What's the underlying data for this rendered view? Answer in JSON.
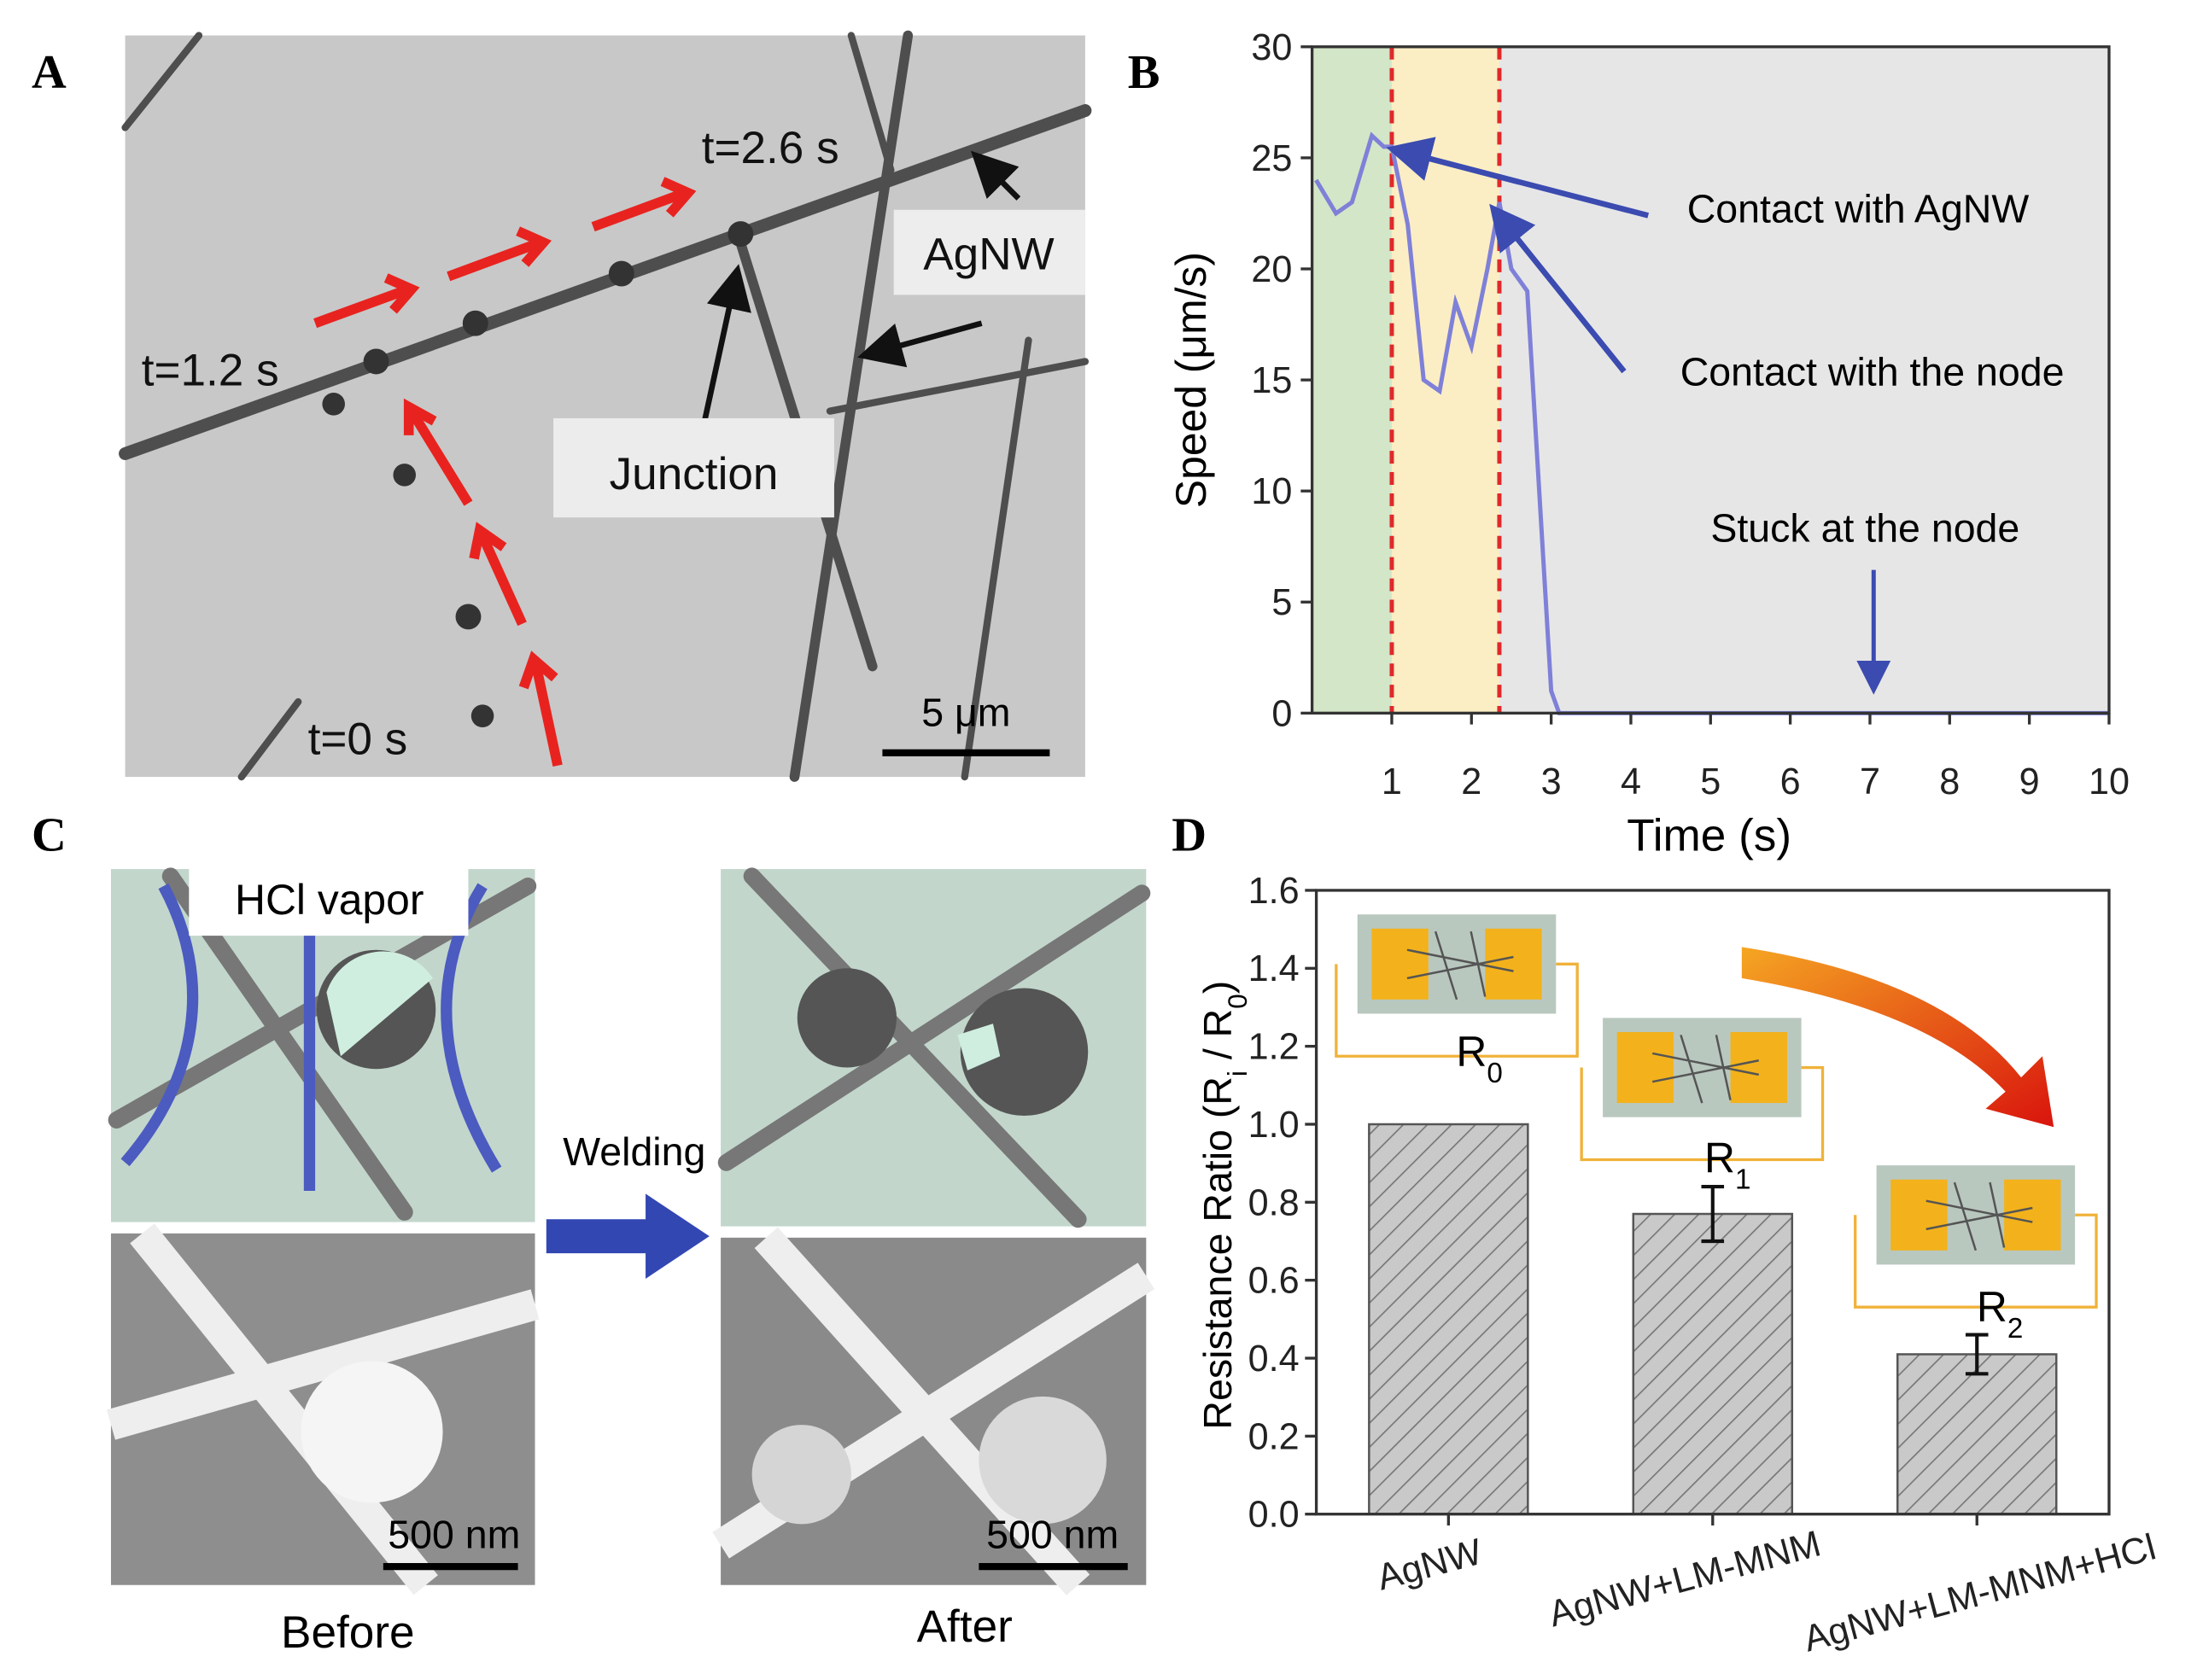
{
  "panel_labels": [
    "A",
    "B",
    "C",
    "D"
  ],
  "panel_a": {
    "times": [
      "t=2.6 s",
      "t=1.2 s",
      "t=0 s"
    ],
    "wire_label": "AgNW",
    "junction_label": "Junction",
    "scale_bar": "5 μm"
  },
  "panel_c": {
    "vapor_label": "HCl vapor",
    "process_label": "Welding",
    "scale_bars": [
      "500 nm",
      "500 nm"
    ],
    "captions": [
      "Before",
      "After"
    ]
  },
  "chart_data": [
    {
      "type": "line",
      "xlabel": "Time (s)",
      "ylabel": "Speed (μm/s)",
      "x": [
        0.05,
        0.3,
        0.5,
        0.75,
        0.9,
        1.0,
        1.2,
        1.4,
        1.6,
        1.8,
        2.0,
        2.2,
        2.35,
        2.5,
        2.7,
        2.85,
        3.0,
        3.1,
        10
      ],
      "series": [
        {
          "color": "#7f80d8",
          "values": [
            24,
            22.5,
            23,
            26,
            25.5,
            25.5,
            22,
            15,
            14.5,
            18.5,
            16.5,
            20,
            23,
            20,
            19,
            10,
            1,
            0,
            0
          ]
        }
      ],
      "xlim": [
        0,
        10
      ],
      "xticks": [
        1,
        2,
        3,
        4,
        5,
        6,
        7,
        8,
        9,
        10
      ],
      "ylim": [
        0,
        30
      ],
      "yticks": [
        0,
        5,
        10,
        15,
        20,
        25,
        30
      ],
      "shaded_regions": [
        {
          "start": 0,
          "end": 1,
          "color": "#d3e6c8"
        },
        {
          "start": 1,
          "end": 2.35,
          "color": "#fbeec4"
        },
        {
          "start": 2.35,
          "end": 10,
          "color": "#e6e6e6"
        }
      ],
      "vlines": [
        1,
        2.35
      ],
      "vline_color": "#e0282a",
      "annotations": [
        "Contact with AgNW",
        "Contact with the node",
        "Stuck at the node"
      ]
    },
    {
      "type": "bar",
      "ylabel_parts": [
        "Resistance Ratio (R",
        "i",
        " / R",
        "0",
        ")"
      ],
      "categories": [
        "AgNW",
        "AgNW+LM-MNM",
        "AgNW+LM-MNM+HCl"
      ],
      "values": [
        1.0,
        0.77,
        0.41
      ],
      "errors": [
        null,
        0.07,
        0.05
      ],
      "color": "#c9c9c9",
      "ylim": [
        0,
        1.6
      ],
      "yticks": [
        {
          "value": 0,
          "label": "0.0"
        },
        0.2,
        0.4,
        0.6,
        0.8,
        {
          "value": 1,
          "label": "1.0"
        },
        1.2,
        1.4,
        1.6
      ],
      "inset_labels": [
        [
          "R",
          "0"
        ],
        [
          "R",
          "1"
        ],
        [
          "R",
          "2"
        ]
      ]
    }
  ]
}
